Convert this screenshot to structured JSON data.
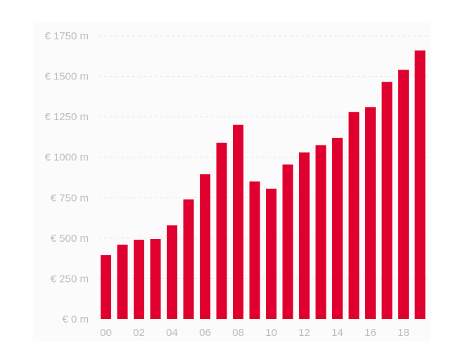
{
  "colors": {
    "bar": "#e0002f",
    "tick_text": "#bdbdbd",
    "grid": "#e6e6e6",
    "plot_background": "#fbfbfb"
  },
  "chart_data": {
    "type": "bar",
    "title": "",
    "xlabel": "",
    "ylabel": "",
    "categories": [
      "00",
      "01",
      "02",
      "03",
      "04",
      "05",
      "06",
      "07",
      "08",
      "09",
      "10",
      "11",
      "12",
      "13",
      "14",
      "15",
      "16",
      "17",
      "18",
      "19"
    ],
    "x_tick_labels": [
      "00",
      "02",
      "04",
      "06",
      "08",
      "10",
      "12",
      "14",
      "16",
      "18"
    ],
    "values": [
      395,
      460,
      490,
      495,
      580,
      740,
      895,
      1090,
      1200,
      850,
      805,
      955,
      1030,
      1075,
      1120,
      1280,
      1310,
      1465,
      1540,
      1660
    ],
    "y_tick_labels": [
      "€ 0 m",
      "€ 250 m",
      "€ 500 m",
      "€ 750 m",
      "€ 1000 m",
      "€ 1250 m",
      "€ 1500 m",
      "€ 1750 m"
    ],
    "y_ticks": [
      0,
      250,
      500,
      750,
      1000,
      1250,
      1500,
      1750
    ],
    "ylim": [
      0,
      1750
    ],
    "grid": true,
    "legend": false
  }
}
